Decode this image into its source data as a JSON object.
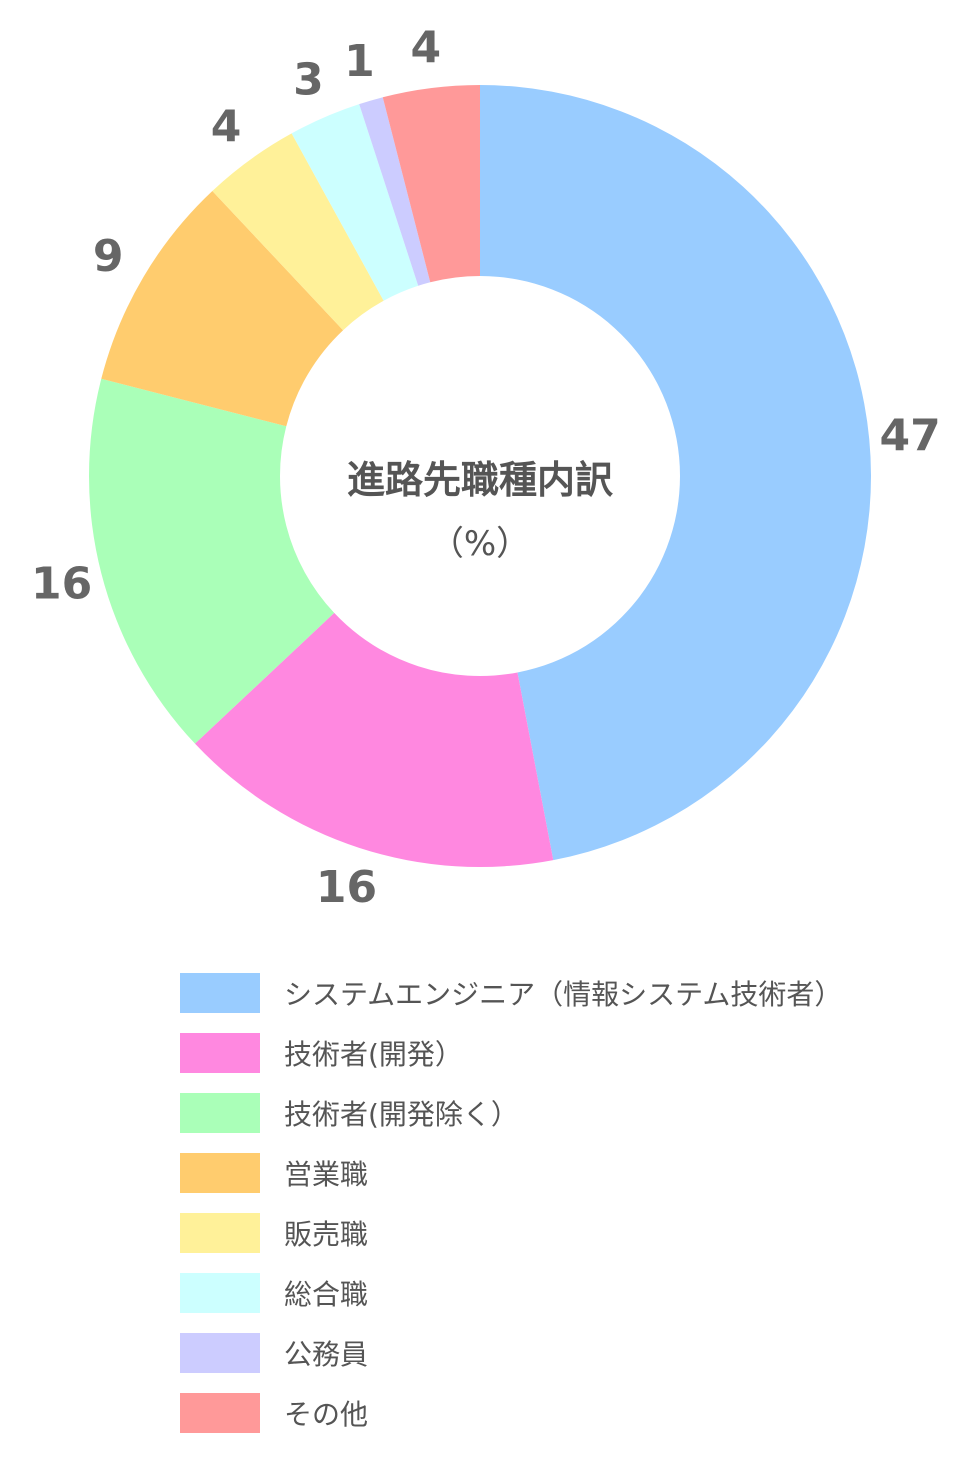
{
  "chart_data": {
    "type": "pie",
    "title": "進路先職種内訳",
    "subtitle": "（%）",
    "categories": [
      "システムエンジニア（情報システム技術者）",
      "技術者(開発）",
      "技術者(開発除く）",
      "営業職",
      "販売職",
      "総合職",
      "公務員",
      "その他"
    ],
    "values": [
      47,
      16,
      16,
      9,
      4,
      3,
      1,
      4
    ],
    "colors": [
      "#99ccff",
      "#ff88e0",
      "#aaffb8",
      "#ffcc6e",
      "#fff199",
      "#ccffff",
      "#ccccff",
      "#ff9999"
    ],
    "legend_position": "bottom"
  }
}
